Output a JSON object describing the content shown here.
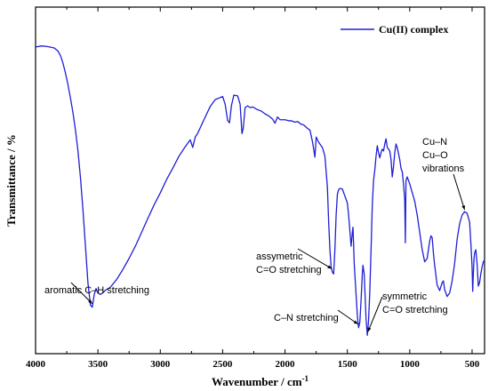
{
  "chart_data": {
    "type": "line",
    "xlabel": "Wavenumber / cm",
    "xlabel_superscript": "-1",
    "ylabel": "Transmittance / %",
    "xlim": [
      4000,
      400
    ],
    "x_reversed": true,
    "y_ticks_shown": false,
    "grid": false,
    "legend_position": "top-right",
    "x_ticks": [
      4000,
      3500,
      3000,
      2500,
      2000,
      1500,
      1000,
      500
    ],
    "series": [
      {
        "name": "Cu(II) complex",
        "color": "#1f1fd6",
        "points": [
          [
            4000,
            88.5
          ],
          [
            3950,
            88.8
          ],
          [
            3900,
            88.6
          ],
          [
            3850,
            88.2
          ],
          [
            3820,
            87.3
          ],
          [
            3800,
            86.0
          ],
          [
            3780,
            83.8
          ],
          [
            3760,
            80.9
          ],
          [
            3740,
            77.6
          ],
          [
            3720,
            73.7
          ],
          [
            3700,
            69.5
          ],
          [
            3680,
            64.5
          ],
          [
            3660,
            58.5
          ],
          [
            3640,
            50.8
          ],
          [
            3620,
            41.5
          ],
          [
            3600,
            31.0
          ],
          [
            3580,
            20.4
          ],
          [
            3560,
            14.0
          ],
          [
            3545,
            13.4
          ],
          [
            3530,
            17.0
          ],
          [
            3515,
            18.8
          ],
          [
            3500,
            17.5
          ],
          [
            3480,
            17.1
          ],
          [
            3460,
            17.6
          ],
          [
            3440,
            18.3
          ],
          [
            3400,
            19.2
          ],
          [
            3350,
            21.4
          ],
          [
            3300,
            24.3
          ],
          [
            3250,
            27.5
          ],
          [
            3200,
            31.0
          ],
          [
            3150,
            35.0
          ],
          [
            3100,
            39.0
          ],
          [
            3050,
            42.9
          ],
          [
            3000,
            46.4
          ],
          [
            2950,
            50.2
          ],
          [
            2900,
            53.5
          ],
          [
            2850,
            57.0
          ],
          [
            2800,
            59.7
          ],
          [
            2760,
            61.7
          ],
          [
            2740,
            59.5
          ],
          [
            2720,
            62.5
          ],
          [
            2700,
            63.6
          ],
          [
            2650,
            67.5
          ],
          [
            2600,
            71.3
          ],
          [
            2560,
            73.3
          ],
          [
            2520,
            73.9
          ],
          [
            2500,
            74.2
          ],
          [
            2480,
            72.0
          ],
          [
            2460,
            67.3
          ],
          [
            2445,
            66.6
          ],
          [
            2430,
            71.5
          ],
          [
            2410,
            74.6
          ],
          [
            2380,
            74.4
          ],
          [
            2360,
            72.0
          ],
          [
            2345,
            63.5
          ],
          [
            2335,
            65.0
          ],
          [
            2320,
            71.0
          ],
          [
            2300,
            71.5
          ],
          [
            2280,
            71.0
          ],
          [
            2260,
            71.2
          ],
          [
            2220,
            70.4
          ],
          [
            2190,
            70.0
          ],
          [
            2160,
            69.2
          ],
          [
            2130,
            68.6
          ],
          [
            2100,
            67.7
          ],
          [
            2080,
            66.5
          ],
          [
            2060,
            68.3
          ],
          [
            2040,
            67.5
          ],
          [
            2000,
            67.5
          ],
          [
            1970,
            67.2
          ],
          [
            1950,
            67.2
          ],
          [
            1920,
            66.8
          ],
          [
            1900,
            67.0
          ],
          [
            1870,
            66.2
          ],
          [
            1850,
            66.0
          ],
          [
            1820,
            65.0
          ],
          [
            1800,
            64.5
          ],
          [
            1780,
            61.2
          ],
          [
            1770,
            59.0
          ],
          [
            1760,
            56.7
          ],
          [
            1750,
            62.5
          ],
          [
            1730,
            61.0
          ],
          [
            1700,
            59.5
          ],
          [
            1680,
            57.0
          ],
          [
            1660,
            48.0
          ],
          [
            1650,
            38.0
          ],
          [
            1640,
            30.0
          ],
          [
            1630,
            25.0
          ],
          [
            1620,
            23.5
          ],
          [
            1610,
            23.0
          ],
          [
            1600,
            30.0
          ],
          [
            1590,
            40.0
          ],
          [
            1580,
            46.0
          ],
          [
            1570,
            47.3
          ],
          [
            1560,
            47.7
          ],
          [
            1540,
            47.5
          ],
          [
            1520,
            45.5
          ],
          [
            1500,
            43.5
          ],
          [
            1490,
            40.0
          ],
          [
            1480,
            35.5
          ],
          [
            1470,
            31.0
          ],
          [
            1460,
            35.0
          ],
          [
            1455,
            36.5
          ],
          [
            1450,
            31.5
          ],
          [
            1445,
            26.0
          ],
          [
            1430,
            17.0
          ],
          [
            1420,
            11.0
          ],
          [
            1410,
            7.5
          ],
          [
            1400,
            9.0
          ],
          [
            1390,
            15.5
          ],
          [
            1380,
            23.0
          ],
          [
            1375,
            25.5
          ],
          [
            1365,
            23.0
          ],
          [
            1350,
            10.0
          ],
          [
            1340,
            5.3
          ],
          [
            1330,
            9.5
          ],
          [
            1320,
            18.0
          ],
          [
            1310,
            30.0
          ],
          [
            1300,
            43.0
          ],
          [
            1290,
            50.0
          ],
          [
            1280,
            53.0
          ],
          [
            1270,
            57.0
          ],
          [
            1260,
            60.0
          ],
          [
            1250,
            58.0
          ],
          [
            1240,
            56.5
          ],
          [
            1230,
            58.0
          ],
          [
            1220,
            59.0
          ],
          [
            1210,
            58.5
          ],
          [
            1200,
            60.5
          ],
          [
            1190,
            62.0
          ],
          [
            1180,
            59.5
          ],
          [
            1170,
            59.0
          ],
          [
            1160,
            58.5
          ],
          [
            1150,
            56.0
          ],
          [
            1140,
            51.0
          ],
          [
            1130,
            54.0
          ],
          [
            1120,
            58.0
          ],
          [
            1110,
            60.5
          ],
          [
            1100,
            59.5
          ],
          [
            1080,
            56.0
          ],
          [
            1070,
            53.5
          ],
          [
            1060,
            52.5
          ],
          [
            1050,
            49.0
          ],
          [
            1040,
            44.5
          ],
          [
            1035,
            32.0
          ],
          [
            1030,
            50.0
          ],
          [
            1020,
            51.0
          ],
          [
            1000,
            49.0
          ],
          [
            980,
            46.5
          ],
          [
            960,
            44.0
          ],
          [
            940,
            40.0
          ],
          [
            920,
            35.0
          ],
          [
            900,
            30.0
          ],
          [
            880,
            26.5
          ],
          [
            860,
            27.5
          ],
          [
            840,
            32.5
          ],
          [
            830,
            34.0
          ],
          [
            820,
            33.5
          ],
          [
            810,
            29.0
          ],
          [
            800,
            25.5
          ],
          [
            780,
            19.8
          ],
          [
            760,
            18.2
          ],
          [
            740,
            20.5
          ],
          [
            730,
            21.0
          ],
          [
            720,
            18.5
          ],
          [
            700,
            16.5
          ],
          [
            680,
            17.5
          ],
          [
            660,
            21.0
          ],
          [
            640,
            26.0
          ],
          [
            620,
            33.0
          ],
          [
            600,
            37.5
          ],
          [
            580,
            40.0
          ],
          [
            560,
            41.0
          ],
          [
            540,
            40.5
          ],
          [
            520,
            38.0
          ],
          [
            510,
            32.0
          ],
          [
            500,
            25.0
          ],
          [
            495,
            18.0
          ],
          [
            490,
            23.0
          ],
          [
            485,
            27.0
          ],
          [
            480,
            29.0
          ],
          [
            470,
            30.0
          ],
          [
            460,
            26.0
          ],
          [
            450,
            19.5
          ],
          [
            440,
            20.5
          ],
          [
            430,
            23.0
          ],
          [
            420,
            25.0
          ],
          [
            410,
            26.5
          ],
          [
            400,
            27.0
          ]
        ]
      }
    ],
    "annotations": [
      {
        "id": "aromatic",
        "lines": [
          "aromatic C–H stretching"
        ],
        "target": [
          3545,
          13.4
        ]
      },
      {
        "id": "assym",
        "lines": [
          "assymetric",
          "C=O stretching"
        ],
        "target": [
          1625,
          23.5
        ]
      },
      {
        "id": "cn",
        "lines": [
          "C–N stretching"
        ],
        "target": [
          1415,
          7.5
        ]
      },
      {
        "id": "sym",
        "lines": [
          "symmetric",
          "C=O stretching"
        ],
        "target": [
          1335,
          5.3
        ]
      },
      {
        "id": "cu",
        "lines": [
          "Cu–N",
          "Cu–O",
          "vibrations"
        ],
        "target": [
          560,
          40.5
        ]
      }
    ]
  }
}
